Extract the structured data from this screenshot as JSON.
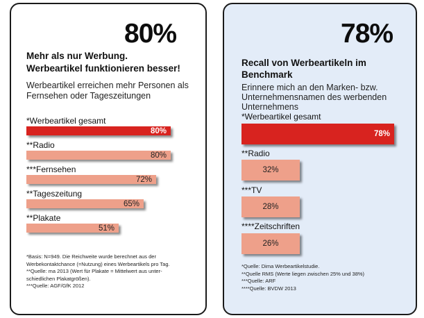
{
  "left_panel": {
    "big_percent": "80%",
    "headline_line1": "Mehr als nur Werbung.",
    "headline_line2": "Werbeartikel funktionieren besser!",
    "subtext_line1": "Werbeartikel erreichen mehr Personen als",
    "subtext_line2": "Fernsehen oder Tageszeitungen",
    "footnotes": [
      "*Basis: N=949. Die Reichweite wurde berechnet aus der",
      "Werbekontaktchance (=Nutzung) eines Werbeartikels pro Tag.",
      "**Quelle: ma 2013 (Wert für Plakate = Mittelwert aus unter-",
      "schiedlichen Plakatgrößen).",
      "***Quelle: AGF/GfK 2012"
    ]
  },
  "right_panel": {
    "big_percent": "78%",
    "headline_line1": "Recall von Werbeartikeln im",
    "headline_line2": "Benchmark",
    "subtext_line1": "Erinnere mich an den Marken- bzw.",
    "subtext_line2": "Unternehmensnamen des werbenden",
    "subtext_line3": "Unternehmens",
    "footnotes": [
      "*Quelle: Dima Werbeartikelstudie.",
      "**Quelle RMS (Werte liegen zwischen 25% und 38%)",
      "***Quelle: ARF",
      "****Quelle: BVDW 2013"
    ]
  },
  "colors": {
    "primary_bar": "#d8231f",
    "secondary_bar": "#eea08a",
    "right_panel_bg": "#e3ecf8"
  },
  "chart_data": [
    {
      "type": "bar",
      "orientation": "horizontal",
      "title": "Mehr als nur Werbung. Werbeartikel funktionieren besser!",
      "subtitle": "Werbeartikel erreichen mehr Personen als Fernsehen oder Tageszeitungen",
      "categories": [
        "*Werbeartikel gesamt",
        "**Radio",
        "***Fernsehen",
        "**Tageszeitung",
        "**Plakate"
      ],
      "values": [
        80,
        80,
        72,
        65,
        51
      ],
      "value_labels": [
        "80%",
        "80%",
        "72%",
        "65%",
        "51%"
      ],
      "unit": "%",
      "xlim": [
        0,
        100
      ],
      "grid": false,
      "legend": "none"
    },
    {
      "type": "bar",
      "orientation": "horizontal",
      "title": "Recall von Werbeartikeln im Benchmark",
      "subtitle": "Erinnere mich an den Marken- bzw. Unternehmensnamen des werbenden Unternehmens",
      "categories": [
        "*Werbeartikel gesamt",
        "**Radio",
        "***TV",
        "****Zeitschriften"
      ],
      "values": [
        78,
        32,
        28,
        26
      ],
      "value_labels": [
        "78%",
        "32%",
        "28%",
        "26%"
      ],
      "unit": "%",
      "xlim": [
        0,
        100
      ],
      "grid": false,
      "legend": "none"
    }
  ]
}
